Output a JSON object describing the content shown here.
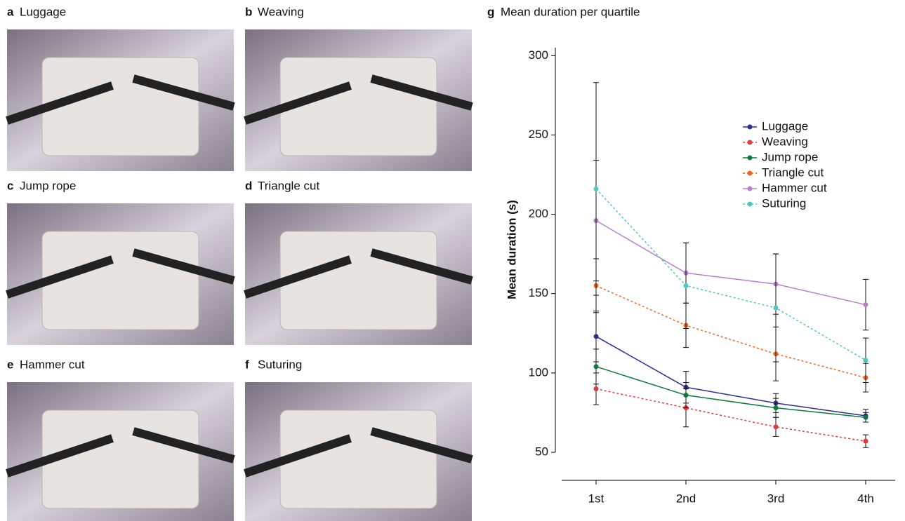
{
  "panels": [
    {
      "letter": "a",
      "title": "Luggage"
    },
    {
      "letter": "b",
      "title": "Weaving"
    },
    {
      "letter": "c",
      "title": "Jump rope"
    },
    {
      "letter": "d",
      "title": "Triangle cut"
    },
    {
      "letter": "e",
      "title": "Hammer cut"
    },
    {
      "letter": "f",
      "title": "Suturing"
    }
  ],
  "chart_data": {
    "type": "line",
    "label": "g",
    "title": "Mean duration per quartile",
    "y_label": "Mean duration (s)",
    "categories": [
      "1st",
      "2nd",
      "3rd",
      "4th"
    ],
    "ylim": [
      50,
      305
    ],
    "yticks": [
      50,
      100,
      150,
      200,
      250,
      300
    ],
    "legend": "upper right",
    "series": [
      {
        "name": "Luggage",
        "color": "#2b2f8f",
        "linestyle": "solid",
        "values": [
          123,
          91,
          81,
          73
        ],
        "errors": [
          16,
          10,
          6,
          4
        ]
      },
      {
        "name": "Weaving",
        "color": "#e03c3c",
        "linestyle": "dashed",
        "values": [
          90,
          78,
          66,
          57
        ],
        "errors": [
          10,
          12,
          6,
          4
        ]
      },
      {
        "name": "Jump rope",
        "color": "#0a7a3c",
        "linestyle": "solid",
        "values": [
          104,
          86,
          78,
          72
        ],
        "errors": [
          11,
          8,
          6,
          3
        ]
      },
      {
        "name": "Triangle cut",
        "color": "#f26522",
        "linestyle": "dashed",
        "values": [
          155,
          130,
          112,
          97
        ],
        "errors": [
          17,
          14,
          17,
          9
        ]
      },
      {
        "name": "Hammer cut",
        "color": "#b87fcf",
        "linestyle": "solid",
        "values": [
          196,
          163,
          156,
          143
        ],
        "errors": [
          38,
          19,
          19,
          16
        ]
      },
      {
        "name": "Suturing",
        "color": "#4fc9c0",
        "linestyle": "dashed",
        "values": [
          216,
          155,
          141,
          108
        ],
        "errors": [
          67,
          27,
          34,
          14
        ]
      }
    ]
  }
}
